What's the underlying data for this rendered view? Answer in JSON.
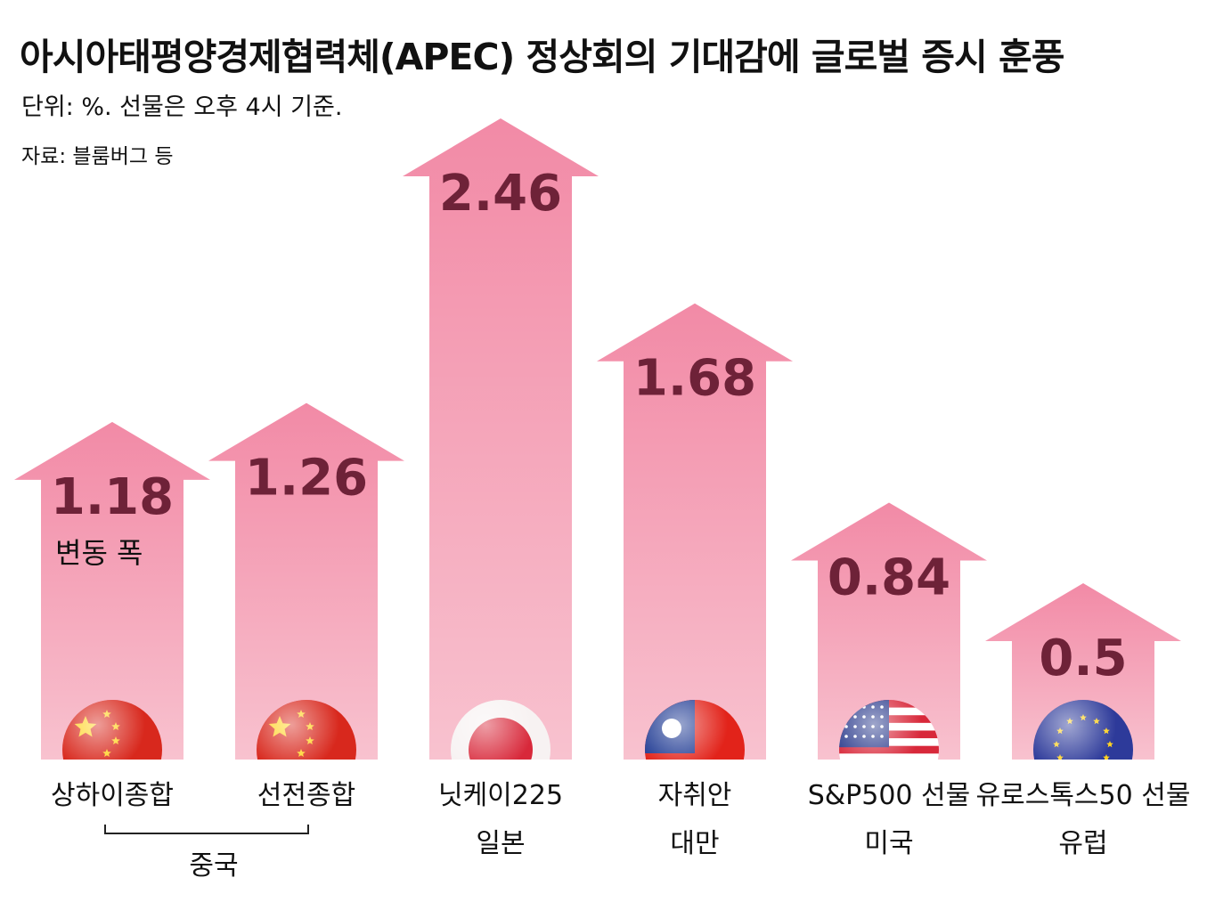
{
  "title": "아시아태평양경제협력체(APEC) 정상회의 기대감에 글로벌 증시 훈풍",
  "subtitle": "단위: %. 선물은 오후 4시 기준.",
  "source": "자료: 블룸버그 등",
  "colors": {
    "arrow_top": "#f28aa6",
    "arrow_bottom": "#f8c2cf",
    "value_text": "#6e2238"
  },
  "chart_data": {
    "type": "bar",
    "title": "아시아태평양경제협력체(APEC) 정상회의 기대감에 글로벌 증시 훈풍",
    "ylabel": "변동 폭",
    "unit": "%",
    "ylim": [
      0,
      2.46
    ],
    "categories": [
      "상하이종합",
      "선전종합",
      "닛케이225",
      "자취안",
      "S&P500 선물",
      "유로스톡스50 선물"
    ],
    "regions": [
      "중국",
      "중국",
      "일본",
      "대만",
      "미국",
      "유럽"
    ],
    "flags": [
      "china-flag-icon",
      "china-flag-icon",
      "japan-flag-icon",
      "taiwan-flag-icon",
      "usa-flag-icon",
      "eu-flag-icon"
    ],
    "values": [
      1.18,
      1.26,
      2.46,
      1.68,
      0.84,
      0.5
    ],
    "value_labels": [
      "1.18",
      "1.26",
      "2.46",
      "1.68",
      "0.84",
      "0.5"
    ],
    "annotation": "변동 폭",
    "group_label": "중국"
  }
}
